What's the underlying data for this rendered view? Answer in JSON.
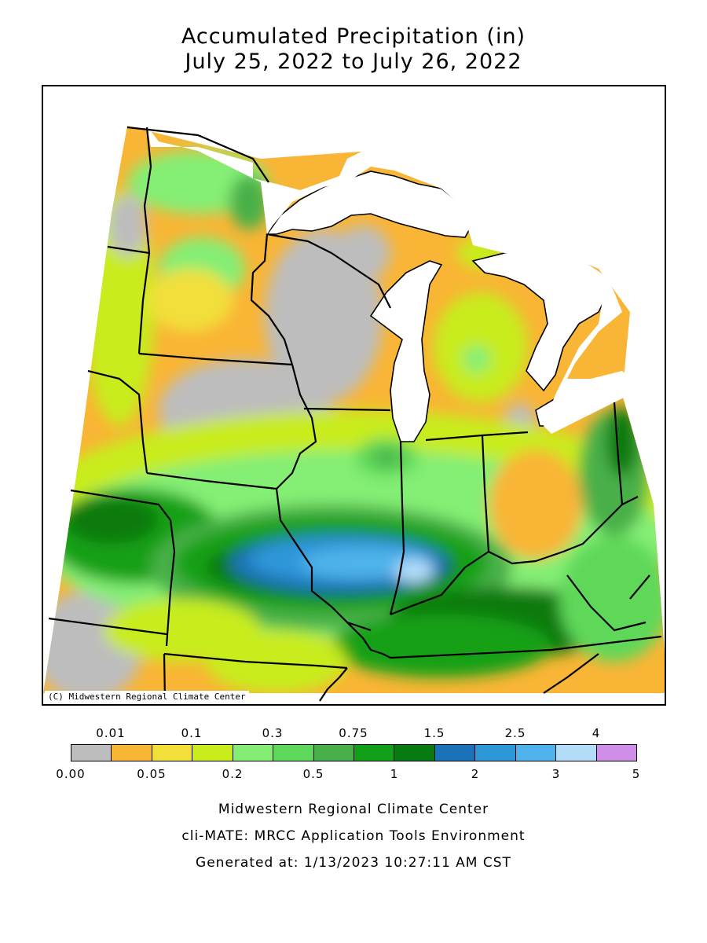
{
  "title": {
    "line1": "Accumulated Precipitation (in)",
    "line2": "July 25, 2022 to July 26, 2022"
  },
  "map": {
    "copyright": "(C) Midwestern Regional Climate Center",
    "colors": {
      "none": "#bdbdbd",
      "c001": "#f9b535",
      "c005": "#f2df3a",
      "c01": "#c8ec1c",
      "c02": "#84ee74",
      "c03": "#5ed85a",
      "c05": "#48b048",
      "c075": "#12a018",
      "c1": "#077a10",
      "c15": "#1a73b8",
      "c2": "#2e97d8",
      "c25": "#4fb2ea",
      "c3": "#b2dcf8",
      "c4": "#cf8ee8",
      "lake": "#ffffff",
      "outline": "#000000"
    }
  },
  "legend": {
    "top_labels": [
      "0.01",
      "0.1",
      "0.3",
      "0.75",
      "1.5",
      "2.5",
      "4"
    ],
    "bottom_labels": [
      "0.00",
      "0.05",
      "0.2",
      "0.5",
      "1",
      "2",
      "3",
      "5"
    ],
    "colors": [
      "#bdbdbd",
      "#f9b535",
      "#f2df3a",
      "#c8ec1c",
      "#84ee74",
      "#5ed85a",
      "#48b048",
      "#12a018",
      "#077a10",
      "#1a73b8",
      "#2e97d8",
      "#4fb2ea",
      "#b2dcf8",
      "#cf8ee8"
    ]
  },
  "footer": {
    "line1": "Midwestern Regional Climate Center",
    "line2": "cli-MATE: MRCC Application Tools Environment",
    "line3": "Generated at: 1/13/2023 10:27:11 AM CST"
  }
}
